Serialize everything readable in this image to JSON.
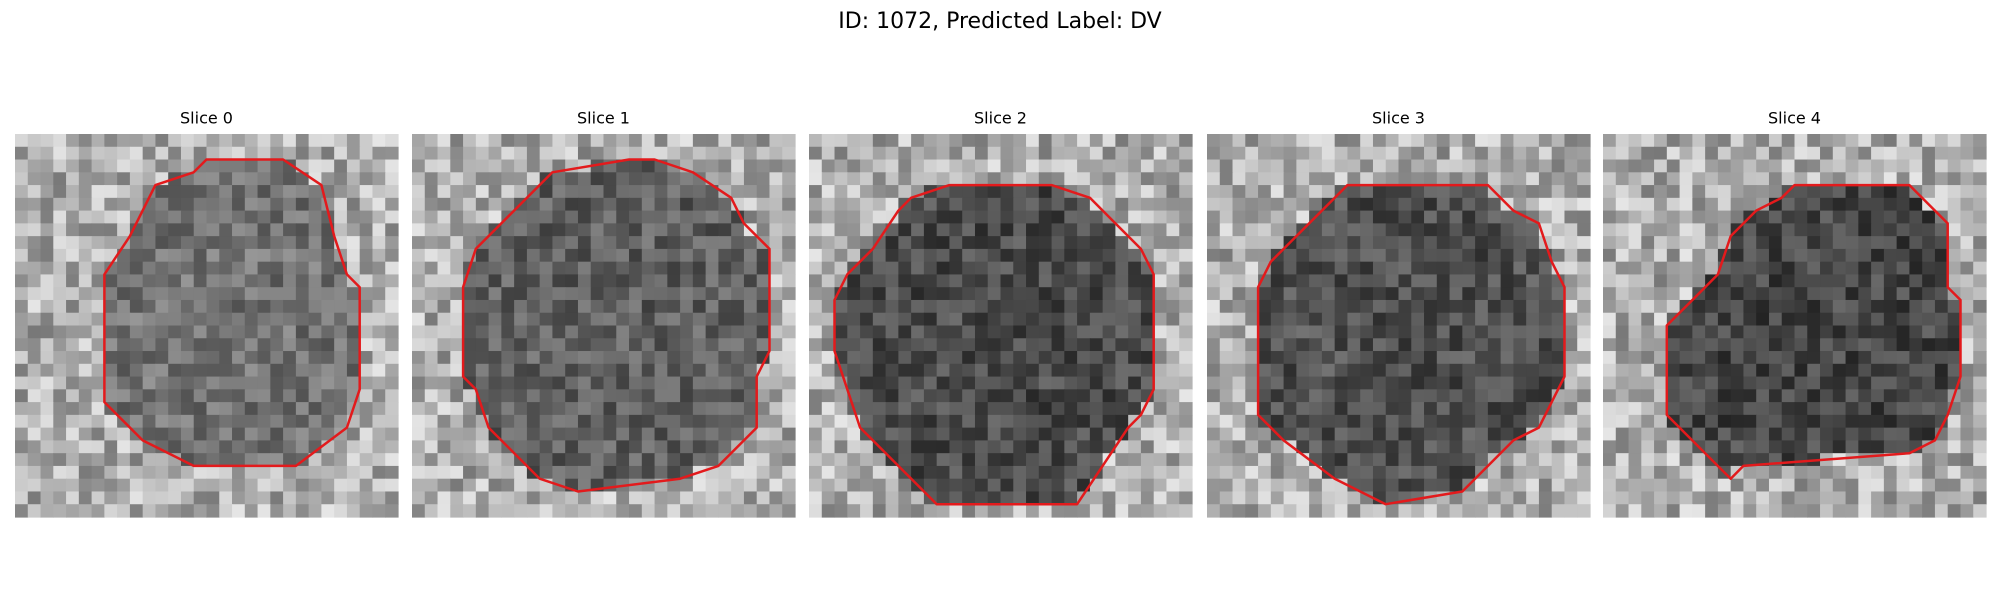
{
  "header": {
    "title": "ID: 1072, Predicted Label: DV"
  },
  "panels": [
    {
      "title": "Slice 0"
    },
    {
      "title": "Slice 1"
    },
    {
      "title": "Slice 2"
    },
    {
      "title": "Slice 3"
    },
    {
      "title": "Slice 4"
    }
  ]
}
